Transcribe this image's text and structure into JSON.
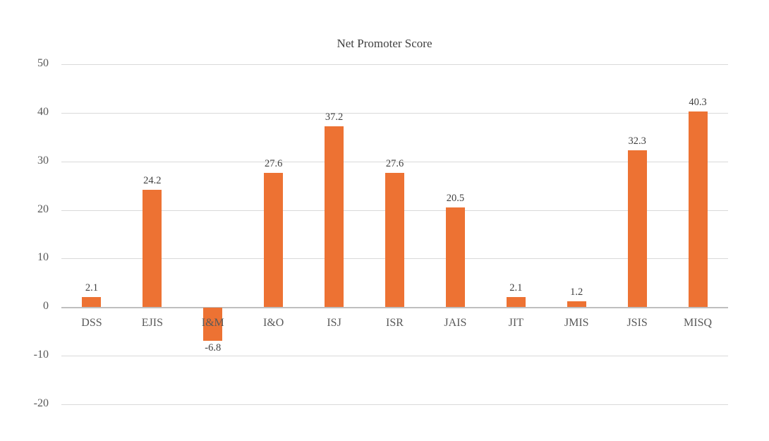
{
  "chart_data": {
    "type": "bar",
    "title": "Net Promoter Score",
    "xlabel": "",
    "ylabel": "",
    "categories": [
      "DSS",
      "EJIS",
      "I&M",
      "I&O",
      "ISJ",
      "ISR",
      "JAIS",
      "JIT",
      "JMIS",
      "JSIS",
      "MISQ"
    ],
    "values": [
      2.1,
      24.2,
      -6.8,
      27.6,
      37.2,
      27.6,
      20.5,
      2.1,
      1.2,
      32.3,
      40.3
    ],
    "value_labels": [
      "2.1",
      "24.2",
      "-6.8",
      "27.6",
      "37.2",
      "27.6",
      "20.5",
      "2.1",
      "1.2",
      "32.3",
      "40.3"
    ],
    "ylim": [
      -20,
      50
    ],
    "yticks": [
      50,
      40,
      30,
      20,
      10,
      0,
      -10,
      -20
    ],
    "grid": true,
    "legend": null,
    "bar_color": "#ED7233"
  }
}
